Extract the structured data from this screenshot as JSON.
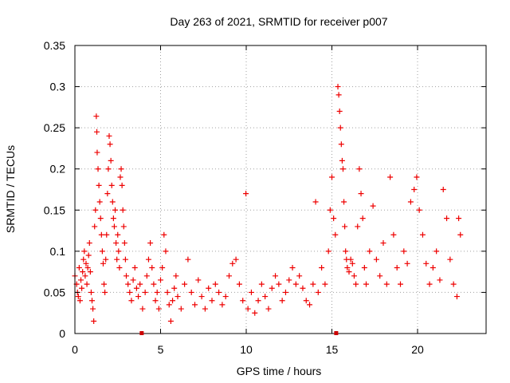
{
  "chart_data": {
    "type": "scatter",
    "title": "Day 263 of 2021, SRMTID for receiver p007",
    "xlabel": "GPS time / hours",
    "ylabel": "SRMTID / TECUs",
    "xlim": [
      0,
      24
    ],
    "ylim": [
      0,
      0.35
    ],
    "xticks": [
      0,
      5,
      10,
      15,
      20
    ],
    "xtick_labels": [
      "0",
      "5",
      "10",
      "15",
      "20"
    ],
    "yticks": [
      0,
      0.05,
      0.1,
      0.15,
      0.2,
      0.25,
      0.3,
      0.35
    ],
    "ytick_labels": [
      "0",
      "0.05",
      "0.1",
      "0.15",
      "0.2",
      "0.25",
      "0.3",
      "0.35"
    ],
    "grid": true,
    "marker": "+",
    "color": "#ee0000",
    "gap_markers_x": [
      3.9,
      15.25
    ],
    "series": [
      {
        "name": "SRMTID",
        "points": [
          [
            0.0,
            0.07
          ],
          [
            0.1,
            0.06
          ],
          [
            0.15,
            0.05
          ],
          [
            0.2,
            0.045
          ],
          [
            0.25,
            0.08
          ],
          [
            0.3,
            0.04
          ],
          [
            0.35,
            0.065
          ],
          [
            0.4,
            0.055
          ],
          [
            0.45,
            0.075
          ],
          [
            0.5,
            0.09
          ],
          [
            0.55,
            0.1
          ],
          [
            0.6,
            0.07
          ],
          [
            0.65,
            0.085
          ],
          [
            0.7,
            0.06
          ],
          [
            0.75,
            0.08
          ],
          [
            0.8,
            0.095
          ],
          [
            0.85,
            0.11
          ],
          [
            0.9,
            0.075
          ],
          [
            0.95,
            0.05
          ],
          [
            1.0,
            0.04
          ],
          [
            1.05,
            0.03
          ],
          [
            1.1,
            0.015
          ],
          [
            1.15,
            0.13
          ],
          [
            1.2,
            0.15
          ],
          [
            1.25,
            0.264
          ],
          [
            1.28,
            0.245
          ],
          [
            1.3,
            0.22
          ],
          [
            1.35,
            0.2
          ],
          [
            1.4,
            0.18
          ],
          [
            1.45,
            0.16
          ],
          [
            1.5,
            0.14
          ],
          [
            1.55,
            0.12
          ],
          [
            1.6,
            0.1
          ],
          [
            1.65,
            0.085
          ],
          [
            1.7,
            0.06
          ],
          [
            1.75,
            0.05
          ],
          [
            1.8,
            0.09
          ],
          [
            1.85,
            0.12
          ],
          [
            1.9,
            0.17
          ],
          [
            1.95,
            0.2
          ],
          [
            2.0,
            0.24
          ],
          [
            2.05,
            0.23
          ],
          [
            2.1,
            0.21
          ],
          [
            2.15,
            0.18
          ],
          [
            2.2,
            0.16
          ],
          [
            2.25,
            0.14
          ],
          [
            2.3,
            0.13
          ],
          [
            2.35,
            0.15
          ],
          [
            2.4,
            0.11
          ],
          [
            2.45,
            0.09
          ],
          [
            2.5,
            0.12
          ],
          [
            2.55,
            0.1
          ],
          [
            2.6,
            0.08
          ],
          [
            2.65,
            0.19
          ],
          [
            2.7,
            0.2
          ],
          [
            2.75,
            0.18
          ],
          [
            2.8,
            0.15
          ],
          [
            2.85,
            0.13
          ],
          [
            2.9,
            0.11
          ],
          [
            2.95,
            0.09
          ],
          [
            3.0,
            0.07
          ],
          [
            3.1,
            0.06
          ],
          [
            3.2,
            0.05
          ],
          [
            3.3,
            0.04
          ],
          [
            3.4,
            0.065
          ],
          [
            3.5,
            0.08
          ],
          [
            3.6,
            0.055
          ],
          [
            3.7,
            0.045
          ],
          [
            3.8,
            0.06
          ],
          [
            3.95,
            0.03
          ],
          [
            4.1,
            0.05
          ],
          [
            4.2,
            0.07
          ],
          [
            4.3,
            0.09
          ],
          [
            4.4,
            0.11
          ],
          [
            4.5,
            0.08
          ],
          [
            4.6,
            0.06
          ],
          [
            4.7,
            0.04
          ],
          [
            4.8,
            0.05
          ],
          [
            4.9,
            0.03
          ],
          [
            5.0,
            0.065
          ],
          [
            5.1,
            0.08
          ],
          [
            5.2,
            0.12
          ],
          [
            5.3,
            0.1
          ],
          [
            5.4,
            0.05
          ],
          [
            5.5,
            0.035
          ],
          [
            5.6,
            0.015
          ],
          [
            5.7,
            0.04
          ],
          [
            5.8,
            0.055
          ],
          [
            5.9,
            0.07
          ],
          [
            6.0,
            0.045
          ],
          [
            6.2,
            0.03
          ],
          [
            6.4,
            0.06
          ],
          [
            6.6,
            0.09
          ],
          [
            6.8,
            0.05
          ],
          [
            7.0,
            0.035
          ],
          [
            7.2,
            0.065
          ],
          [
            7.4,
            0.045
          ],
          [
            7.6,
            0.03
          ],
          [
            7.8,
            0.055
          ],
          [
            8.0,
            0.04
          ],
          [
            8.2,
            0.06
          ],
          [
            8.4,
            0.05
          ],
          [
            8.6,
            0.035
          ],
          [
            8.8,
            0.045
          ],
          [
            9.0,
            0.07
          ],
          [
            9.2,
            0.085
          ],
          [
            9.4,
            0.09
          ],
          [
            9.6,
            0.06
          ],
          [
            9.8,
            0.04
          ],
          [
            9.98,
            0.17
          ],
          [
            10.1,
            0.03
          ],
          [
            10.3,
            0.05
          ],
          [
            10.5,
            0.025
          ],
          [
            10.7,
            0.04
          ],
          [
            10.9,
            0.06
          ],
          [
            11.1,
            0.045
          ],
          [
            11.3,
            0.03
          ],
          [
            11.5,
            0.055
          ],
          [
            11.7,
            0.07
          ],
          [
            11.9,
            0.06
          ],
          [
            12.1,
            0.04
          ],
          [
            12.3,
            0.05
          ],
          [
            12.5,
            0.065
          ],
          [
            12.7,
            0.08
          ],
          [
            12.9,
            0.06
          ],
          [
            13.1,
            0.07
          ],
          [
            13.3,
            0.055
          ],
          [
            13.5,
            0.04
          ],
          [
            13.7,
            0.035
          ],
          [
            13.9,
            0.06
          ],
          [
            14.05,
            0.16
          ],
          [
            14.2,
            0.05
          ],
          [
            14.4,
            0.08
          ],
          [
            14.6,
            0.06
          ],
          [
            14.8,
            0.1
          ],
          [
            14.9,
            0.15
          ],
          [
            15.0,
            0.19
          ],
          [
            15.1,
            0.14
          ],
          [
            15.2,
            0.12
          ],
          [
            15.35,
            0.3
          ],
          [
            15.4,
            0.29
          ],
          [
            15.45,
            0.27
          ],
          [
            15.5,
            0.25
          ],
          [
            15.55,
            0.23
          ],
          [
            15.6,
            0.21
          ],
          [
            15.65,
            0.2
          ],
          [
            15.7,
            0.16
          ],
          [
            15.75,
            0.13
          ],
          [
            15.8,
            0.1
          ],
          [
            15.85,
            0.09
          ],
          [
            15.9,
            0.08
          ],
          [
            16.0,
            0.075
          ],
          [
            16.1,
            0.09
          ],
          [
            16.2,
            0.085
          ],
          [
            16.3,
            0.07
          ],
          [
            16.4,
            0.06
          ],
          [
            16.5,
            0.13
          ],
          [
            16.6,
            0.2
          ],
          [
            16.7,
            0.17
          ],
          [
            16.8,
            0.14
          ],
          [
            16.9,
            0.08
          ],
          [
            17.0,
            0.06
          ],
          [
            17.2,
            0.1
          ],
          [
            17.4,
            0.155
          ],
          [
            17.6,
            0.09
          ],
          [
            17.8,
            0.07
          ],
          [
            18.0,
            0.11
          ],
          [
            18.2,
            0.06
          ],
          [
            18.4,
            0.19
          ],
          [
            18.6,
            0.12
          ],
          [
            18.8,
            0.08
          ],
          [
            19.0,
            0.06
          ],
          [
            19.2,
            0.1
          ],
          [
            19.4,
            0.085
          ],
          [
            19.6,
            0.16
          ],
          [
            19.8,
            0.175
          ],
          [
            19.95,
            0.19
          ],
          [
            20.1,
            0.15
          ],
          [
            20.3,
            0.12
          ],
          [
            20.5,
            0.085
          ],
          [
            20.7,
            0.06
          ],
          [
            20.9,
            0.08
          ],
          [
            21.1,
            0.1
          ],
          [
            21.3,
            0.065
          ],
          [
            21.5,
            0.175
          ],
          [
            21.7,
            0.14
          ],
          [
            21.9,
            0.09
          ],
          [
            22.1,
            0.06
          ],
          [
            22.3,
            0.045
          ],
          [
            22.4,
            0.14
          ],
          [
            22.5,
            0.12
          ]
        ]
      }
    ]
  }
}
